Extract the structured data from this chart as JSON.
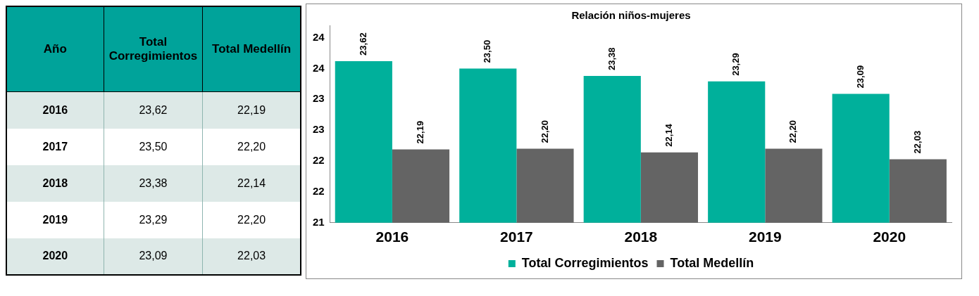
{
  "chart_data": {
    "type": "bar",
    "title": "Relación niños-mujeres",
    "annotations": [
      "Año"
    ],
    "categories": [
      "2016",
      "2017",
      "2018",
      "2019",
      "2020"
    ],
    "series": [
      {
        "name": "Total Corregimientos",
        "color": "#00b09b",
        "values": [
          23.62,
          23.5,
          23.38,
          23.29,
          23.09
        ],
        "value_labels": [
          "23,62",
          "23,50",
          "23,38",
          "23,29",
          "23,09"
        ]
      },
      {
        "name": "Total Medellín",
        "color": "#646464",
        "values": [
          22.19,
          22.2,
          22.14,
          22.2,
          22.03
        ],
        "value_labels": [
          "22,19",
          "22,20",
          "22,14",
          "22,20",
          "22,03"
        ]
      }
    ],
    "ylim": [
      21,
      24.2
    ],
    "yticks": [
      21,
      {
        "value": 21.5,
        "label": "22"
      },
      {
        "value": 22,
        "label": "22"
      },
      {
        "value": 22.5,
        "label": "23"
      },
      {
        "value": 23,
        "label": "23"
      },
      {
        "value": 23.5,
        "label": "24"
      },
      {
        "value": 24,
        "label": "24"
      }
    ],
    "grid": false,
    "legend": "bottom",
    "marker": "square"
  }
}
